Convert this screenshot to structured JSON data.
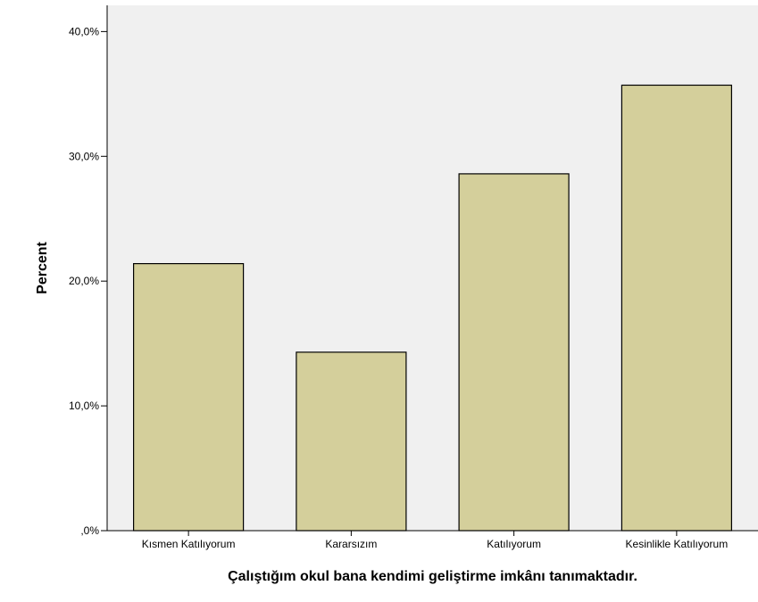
{
  "chart_data": {
    "type": "bar",
    "xlabel": "Çalıştığım okul bana kendimi geliştirme imkânı tanımaktadır.",
    "ylabel": "Percent",
    "categories": [
      "Kısmen Katılıyorum",
      "Kararsızım",
      "Katılıyorum",
      "Kesinlikle Katılıyorum"
    ],
    "values": [
      21.4,
      14.3,
      28.6,
      35.7
    ],
    "ylim": [
      0,
      42.1
    ],
    "yticks": [
      0,
      10,
      20,
      30,
      40
    ],
    "ytick_labels": [
      ",0%",
      "10,0%",
      "20,0%",
      "30,0%",
      "40,0%"
    ],
    "grid": false,
    "colors": {
      "bar_fill": "#d4cf9b",
      "bar_stroke": "#000000",
      "plot_background": "#f0f0f0",
      "page_background": "#ffffff"
    }
  }
}
